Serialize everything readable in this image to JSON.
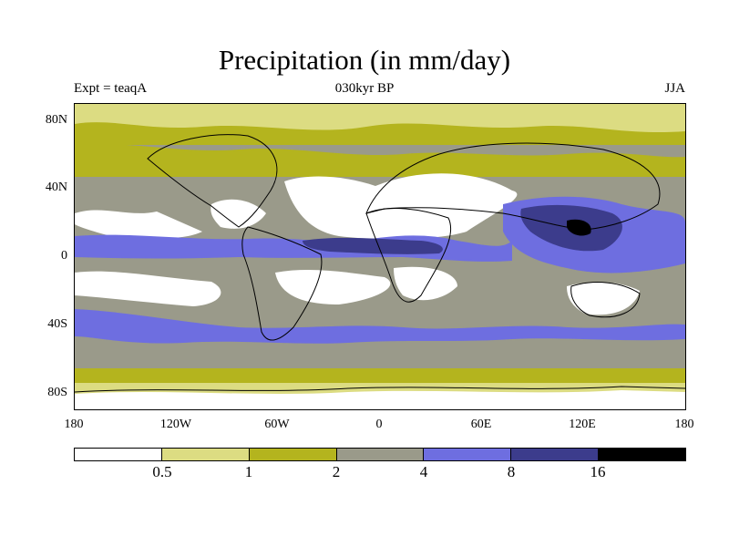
{
  "title": "Precipitation (in mm/day)",
  "subtitle_left": "Expt = teaqA",
  "subtitle_center": "030kyr BP",
  "subtitle_right": "JJA",
  "lat_labels": [
    "80N",
    "40N",
    "0",
    "40S",
    "80S"
  ],
  "lon_labels": [
    "180",
    "120W",
    "60W",
    "0",
    "60E",
    "120E",
    "180"
  ],
  "colorbar": {
    "colors": [
      "#ffffff",
      "#dcdc82",
      "#b4b41e",
      "#9a9a8a",
      "#6e6ee0",
      "#3c3c8c",
      "#000000"
    ],
    "labels": [
      "0.5",
      "1",
      "2",
      "4",
      "8",
      "16"
    ]
  }
}
